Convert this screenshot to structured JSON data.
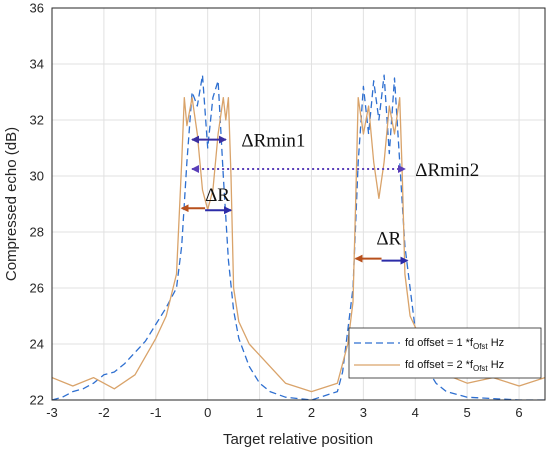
{
  "chart_data": {
    "type": "line",
    "xlabel": "Target relative position",
    "ylabel": "Compressed echo (dB)",
    "xlim": [
      -3,
      6.5
    ],
    "ylim": [
      22,
      36
    ],
    "x_ticks": [
      -3,
      -2,
      -1,
      0,
      1,
      2,
      3,
      4,
      5,
      6
    ],
    "y_ticks": [
      22,
      24,
      26,
      28,
      30,
      32,
      34,
      36
    ],
    "grid": true,
    "legend_position": "bottom-right",
    "series": [
      {
        "name": "fd offset = 1 *f_Ofst Hz",
        "legend_main": "fd offset = 1 *f",
        "legend_sub": "Ofst",
        "legend_tail": " Hz",
        "color": "#2e6fd0",
        "style": "dashed",
        "x": [
          -3.0,
          -2.8,
          -2.6,
          -2.4,
          -2.2,
          -2.0,
          -1.8,
          -1.6,
          -1.4,
          -1.2,
          -1.0,
          -0.8,
          -0.6,
          -0.5,
          -0.4,
          -0.3,
          -0.2,
          -0.1,
          0.0,
          0.1,
          0.2,
          0.3,
          0.4,
          0.5,
          0.6,
          0.8,
          1.0,
          1.2,
          1.5,
          2.0,
          2.5,
          2.6,
          2.8,
          2.9,
          3.0,
          3.1,
          3.2,
          3.3,
          3.4,
          3.5,
          3.6,
          3.7,
          3.8,
          3.9,
          4.0,
          4.1,
          4.2,
          4.4,
          4.6,
          5.0,
          6.0,
          6.5
        ],
        "y": [
          22.0,
          22.1,
          22.3,
          22.4,
          22.6,
          22.9,
          23.0,
          23.3,
          23.7,
          24.1,
          24.7,
          25.3,
          26.0,
          27.5,
          30.5,
          33.0,
          32.5,
          33.6,
          31.0,
          32.8,
          33.4,
          30.0,
          27.0,
          25.2,
          24.2,
          23.2,
          22.6,
          22.3,
          22.1,
          22.0,
          22.3,
          23.0,
          26.0,
          30.5,
          33.2,
          31.5,
          33.4,
          32.0,
          33.6,
          30.8,
          33.5,
          30.5,
          27.5,
          26.0,
          24.5,
          23.8,
          23.2,
          22.6,
          22.3,
          22.1,
          22.0,
          22.0
        ]
      },
      {
        "name": "fd offset = 2 *f_Ofst Hz",
        "legend_main": "fd offset = 2 *f",
        "legend_sub": "Ofst",
        "legend_tail": " Hz",
        "color": "#d9a36a",
        "style": "solid",
        "x": [
          -3.0,
          -2.6,
          -2.2,
          -1.8,
          -1.4,
          -1.0,
          -0.8,
          -0.6,
          -0.5,
          -0.45,
          -0.4,
          -0.3,
          -0.2,
          -0.1,
          0.0,
          0.1,
          0.2,
          0.3,
          0.35,
          0.4,
          0.45,
          0.5,
          0.6,
          0.8,
          1.0,
          1.5,
          2.0,
          2.5,
          2.7,
          2.8,
          2.85,
          2.9,
          3.0,
          3.1,
          3.2,
          3.3,
          3.4,
          3.5,
          3.6,
          3.7,
          3.75,
          3.8,
          3.9,
          4.1,
          4.3,
          4.6,
          5.0,
          5.5,
          6.0,
          6.5
        ],
        "y": [
          22.8,
          22.5,
          22.8,
          22.4,
          22.9,
          24.2,
          25.0,
          26.5,
          30.5,
          32.8,
          31.8,
          32.8,
          31.5,
          29.5,
          28.8,
          29.5,
          31.5,
          32.8,
          32.0,
          32.8,
          30.0,
          26.0,
          24.8,
          24.0,
          23.6,
          22.6,
          22.3,
          22.6,
          24.0,
          25.5,
          29.0,
          32.8,
          31.5,
          32.5,
          30.5,
          29.2,
          30.5,
          32.5,
          31.5,
          32.8,
          30.0,
          26.5,
          25.0,
          24.2,
          23.8,
          22.9,
          22.6,
          22.8,
          22.5,
          22.8
        ]
      }
    ],
    "annotations": {
      "dRmin1": {
        "text": "ΔRmin1",
        "x": 0.65,
        "y": 31.3,
        "arrow_x": [
          -0.3,
          0.35
        ],
        "arrow_y": 31.3,
        "color": "#3a2fa0",
        "style": "solid"
      },
      "dRmin2": {
        "text": "ΔRmin2",
        "x": 4.0,
        "y": 30.25,
        "arrow_x": [
          -0.3,
          3.8
        ],
        "arrow_y": 30.25,
        "color": "#5a3fb8",
        "style": "dotted"
      },
      "dR1": {
        "text": "ΔR",
        "x": -0.05,
        "y": 29.1,
        "arrow_left_x": [
          -0.5,
          -0.05
        ],
        "arrow_right_x": [
          -0.05,
          0.45
        ],
        "arrow_y": 28.85,
        "colors": [
          "#b8501c",
          "#2c2ca8"
        ]
      },
      "dR2": {
        "text": "ΔR",
        "x": 3.25,
        "y": 27.55,
        "arrow_left_x": [
          2.85,
          3.35
        ],
        "arrow_right_x": [
          3.35,
          3.85
        ],
        "arrow_y": 27.05,
        "colors": [
          "#b8501c",
          "#2c2ca8"
        ]
      }
    }
  }
}
